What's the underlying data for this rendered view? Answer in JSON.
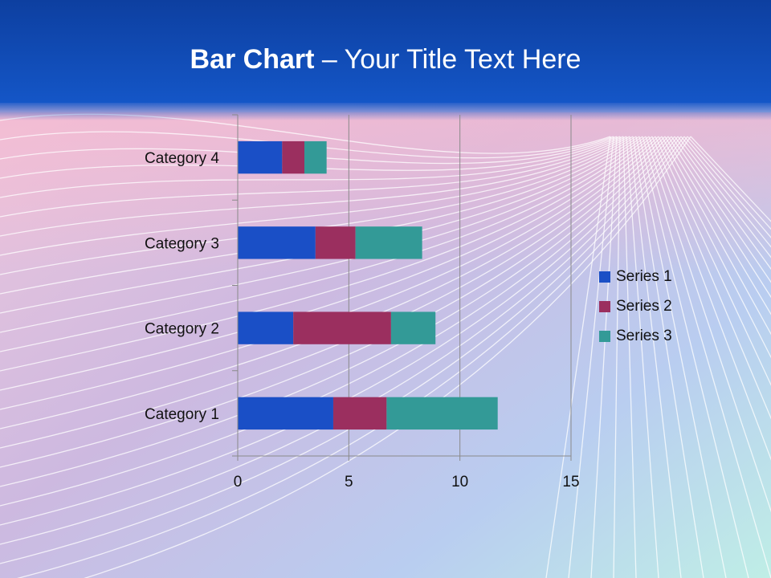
{
  "title": {
    "bold": "Bar Chart",
    "rest": " – Your Title Text Here"
  },
  "colors": {
    "header": "#1456c7",
    "series": [
      "#1a4fc6",
      "#9b2f5f",
      "#339a97"
    ],
    "axis": "#888888"
  },
  "chart_data": {
    "type": "bar",
    "orientation": "horizontal",
    "stacked": true,
    "categories": [
      "Category 1",
      "Category 2",
      "Category 3",
      "Category 4"
    ],
    "series": [
      {
        "name": "Series 1",
        "values": [
          4.3,
          2.5,
          3.5,
          2.0
        ]
      },
      {
        "name": "Series 2",
        "values": [
          2.4,
          4.4,
          1.8,
          1.0
        ]
      },
      {
        "name": "Series 3",
        "values": [
          5.0,
          2.0,
          3.0,
          1.0
        ]
      }
    ],
    "xlim": [
      0,
      15
    ],
    "xticks": [
      0,
      5,
      10,
      15
    ],
    "grid": "vertical",
    "legend": "right"
  }
}
